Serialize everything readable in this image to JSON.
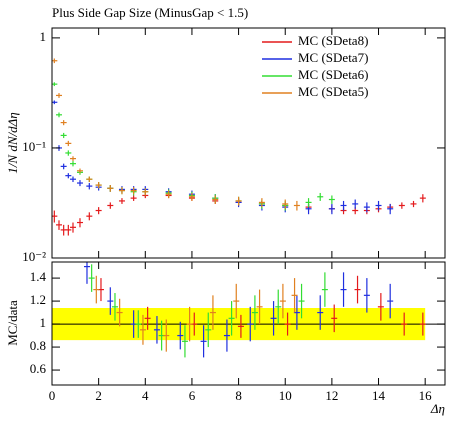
{
  "chart_data": [
    {
      "type": "errorbar",
      "title": "Plus Side Gap Size (MinusGap < 1.5)",
      "ylabel": "1/N dN/dΔη",
      "log_y": true,
      "xlim": [
        0,
        16.85
      ],
      "ylim": [
        0.01,
        1.23
      ],
      "xticks": [
        0,
        2,
        4,
        6,
        8,
        10,
        12,
        14,
        16
      ],
      "yticks": [
        1,
        {
          "value": 0.1,
          "label": "10⁻¹"
        },
        {
          "value": 0.01,
          "label": "10⁻²"
        }
      ],
      "legend": "top-right",
      "series": [
        {
          "name": "MC (SDeta8)",
          "color": "#e41a1c",
          "x": [
            0.1,
            0.3,
            0.5,
            0.7,
            0.9,
            1.2,
            1.6,
            2,
            2.5,
            3,
            3.5,
            4,
            5,
            6,
            7,
            8,
            9,
            10,
            11,
            12,
            12.5,
            13,
            13.5,
            14,
            14.5,
            15,
            15.5,
            15.9
          ],
          "values": [
            0.024,
            0.02,
            0.018,
            0.018,
            0.019,
            0.021,
            0.024,
            0.027,
            0.03,
            0.033,
            0.035,
            0.037,
            0.037,
            0.035,
            0.033,
            0.032,
            0.031,
            0.03,
            0.029,
            0.028,
            0.027,
            0.027,
            0.027,
            0.028,
            0.029,
            0.03,
            0.031,
            0.035
          ],
          "errors": [
            0.003,
            0.002,
            0.002,
            0.002,
            0.002,
            0.002,
            0.002,
            0.002,
            0.002,
            0.002,
            0.002,
            0.002,
            0.002,
            0.002,
            0.002,
            0.002,
            0.002,
            0.002,
            0.002,
            0.002,
            0.002,
            0.002,
            0.002,
            0.002,
            0.002,
            0.002,
            0.002,
            0.003
          ]
        },
        {
          "name": "MC (SDeta7)",
          "color": "#1f2fe0",
          "x": [
            0.1,
            0.3,
            0.5,
            0.7,
            0.9,
            1.2,
            1.6,
            2,
            2.5,
            3,
            3.5,
            4,
            5,
            6,
            7,
            8,
            9,
            10,
            11,
            12,
            12.5,
            13,
            13.5,
            14,
            14.5
          ],
          "values": [
            0.26,
            0.1,
            0.068,
            0.056,
            0.052,
            0.048,
            0.045,
            0.044,
            0.043,
            0.042,
            0.042,
            0.042,
            0.04,
            0.038,
            0.035,
            0.032,
            0.03,
            0.029,
            0.028,
            0.028,
            0.03,
            0.031,
            0.029,
            0.03,
            0.028
          ],
          "errors": [
            0.01,
            0.006,
            0.004,
            0.003,
            0.003,
            0.003,
            0.003,
            0.003,
            0.003,
            0.003,
            0.003,
            0.003,
            0.003,
            0.003,
            0.003,
            0.003,
            0.003,
            0.003,
            0.003,
            0.003,
            0.003,
            0.003,
            0.003,
            0.003,
            0.003
          ]
        },
        {
          "name": "MC (SDeta6)",
          "color": "#33dd33",
          "x": [
            0.1,
            0.3,
            0.5,
            0.7,
            0.9,
            1.2,
            1.6,
            2,
            2.5,
            3,
            3.5,
            4,
            5,
            6,
            7,
            8,
            9,
            10,
            11,
            11.5,
            12
          ],
          "values": [
            0.38,
            0.2,
            0.13,
            0.09,
            0.072,
            0.06,
            0.052,
            0.046,
            0.043,
            0.041,
            0.04,
            0.04,
            0.039,
            0.037,
            0.035,
            0.033,
            0.031,
            0.03,
            0.032,
            0.036,
            0.034
          ],
          "errors": [
            0.015,
            0.01,
            0.007,
            0.005,
            0.004,
            0.003,
            0.003,
            0.003,
            0.003,
            0.003,
            0.003,
            0.003,
            0.003,
            0.003,
            0.003,
            0.003,
            0.003,
            0.003,
            0.003,
            0.003,
            0.003
          ]
        },
        {
          "name": "MC (SDeta5)",
          "color": "#e08020",
          "x": [
            0.1,
            0.3,
            0.5,
            0.7,
            0.9,
            1.2,
            1.6,
            2,
            2.5,
            3,
            3.5,
            4,
            5,
            6,
            7,
            8,
            9,
            10,
            10.5
          ],
          "values": [
            0.62,
            0.3,
            0.17,
            0.11,
            0.08,
            0.062,
            0.052,
            0.046,
            0.043,
            0.041,
            0.041,
            0.04,
            0.038,
            0.036,
            0.034,
            0.033,
            0.032,
            0.031,
            0.03
          ],
          "errors": [
            0.03,
            0.015,
            0.009,
            0.006,
            0.004,
            0.003,
            0.003,
            0.003,
            0.003,
            0.003,
            0.003,
            0.003,
            0.003,
            0.003,
            0.003,
            0.003,
            0.003,
            0.003,
            0.003
          ]
        }
      ]
    },
    {
      "type": "errorbar",
      "ylabel": "MC/data",
      "xlabel": "Δη",
      "log_y": false,
      "xlim": [
        0,
        16.85
      ],
      "ylim": [
        0.47,
        1.54
      ],
      "xticks": [
        0,
        2,
        4,
        6,
        8,
        10,
        12,
        14,
        16
      ],
      "yticks": [
        0.6,
        0.8,
        1,
        1.2,
        1.4
      ],
      "band": {
        "x": [
          0,
          16
        ],
        "lower": [
          0.86,
          0.86
        ],
        "upper": [
          1.14,
          1.14
        ],
        "color": "#ffff00"
      },
      "reference": 1,
      "series": [
        {
          "name": "MC (SDeta8)",
          "color": "#e41a1c",
          "x": [
            2.1,
            4.1,
            6.1,
            8.1,
            10.1,
            12.1,
            13.1,
            14.1,
            15.1,
            15.9
          ],
          "values": [
            1.3,
            1.05,
            1.0,
            0.98,
            1.0,
            1.05,
            1.3,
            1.15,
            1.0,
            1.0
          ],
          "errors": [
            0.1,
            0.1,
            0.1,
            0.1,
            0.1,
            0.12,
            0.12,
            0.12,
            0.1,
            0.1
          ]
        },
        {
          "name": "MC (SDeta7)",
          "color": "#1f2fe0",
          "x": [
            1.5,
            2.5,
            3.5,
            4.5,
            5.5,
            6.5,
            7.5,
            8.5,
            9.5,
            10.5,
            11.5,
            12.5,
            13.5,
            14.5
          ],
          "values": [
            1.5,
            1.2,
            1.0,
            0.95,
            0.9,
            0.85,
            0.9,
            1.0,
            1.05,
            1.1,
            1.1,
            1.3,
            1.25,
            1.2
          ],
          "errors": [
            0.15,
            0.12,
            0.12,
            0.12,
            0.12,
            0.14,
            0.14,
            0.15,
            0.15,
            0.15,
            0.15,
            0.15,
            0.15,
            0.15
          ]
        },
        {
          "name": "MC (SDeta6)",
          "color": "#33dd33",
          "x": [
            1.7,
            2.7,
            3.7,
            4.7,
            5.7,
            6.7,
            7.7,
            8.7,
            9.7,
            10.7,
            11.7
          ],
          "values": [
            1.4,
            1.15,
            1.0,
            0.9,
            0.85,
            0.95,
            1.05,
            1.1,
            1.15,
            1.2,
            1.3
          ],
          "errors": [
            0.12,
            0.12,
            0.12,
            0.13,
            0.14,
            0.15,
            0.15,
            0.15,
            0.15,
            0.15,
            0.15
          ]
        },
        {
          "name": "MC (SDeta5)",
          "color": "#e08020",
          "x": [
            1.9,
            2.9,
            3.9,
            4.9,
            5.9,
            6.9,
            7.9,
            8.9,
            9.9,
            10.4
          ],
          "values": [
            1.3,
            1.1,
            0.95,
            0.9,
            1.0,
            1.1,
            1.2,
            1.15,
            1.2,
            1.25
          ],
          "errors": [
            0.12,
            0.12,
            0.13,
            0.14,
            0.15,
            0.15,
            0.15,
            0.15,
            0.15,
            0.15
          ]
        }
      ]
    }
  ]
}
